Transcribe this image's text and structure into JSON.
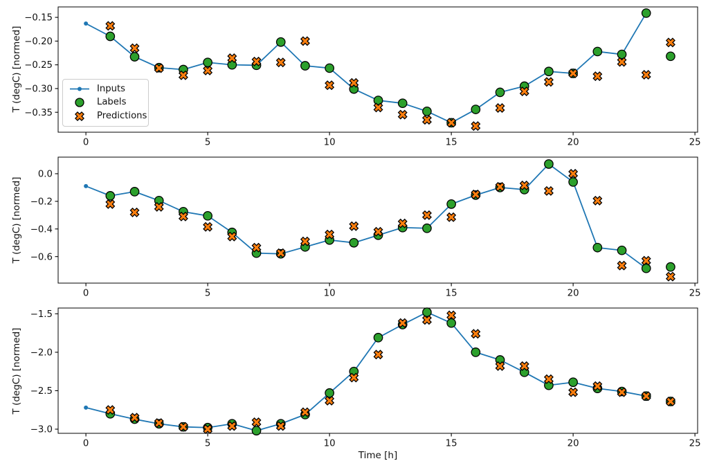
{
  "figure": {
    "xlabel": "Time [h]",
    "ylabel": "T (degC) [normed]",
    "background": "#ffffff",
    "xlim": [
      -1.14,
      25.11
    ],
    "xticks": [
      0,
      5,
      10,
      15,
      20,
      25
    ],
    "xtick_labels": [
      "0",
      "5",
      "10",
      "15",
      "20",
      "25"
    ],
    "legend": {
      "position": "lower left of first subplot",
      "items": [
        {
          "label": "Inputs",
          "marker": "line-dot",
          "color": "#1f77b4"
        },
        {
          "label": "Labels",
          "marker": "circle",
          "color": "#2ca02c"
        },
        {
          "label": "Predictions",
          "marker": "x",
          "color": "#ff7f0e"
        }
      ]
    },
    "colors": {
      "inputs": "#1f77b4",
      "labels": "#2ca02c",
      "predictions": "#ff7f0e",
      "marker_edge": "#000000",
      "spine": "#000000",
      "legend_border": "#cccccc",
      "text": "#111111"
    }
  },
  "chart_data": [
    {
      "name": "subplot-1",
      "type": "line",
      "ylabel": "T (degC) [normed]",
      "ylim": [
        -0.392,
        -0.128
      ],
      "yticks": [
        -0.15,
        -0.2,
        -0.25,
        -0.3,
        -0.35
      ],
      "ytick_labels": [
        "−0.15",
        "−0.20",
        "−0.25",
        "−0.30",
        "−0.35"
      ],
      "series": [
        {
          "name": "Inputs",
          "x": [
            0,
            1,
            2,
            3,
            4,
            5,
            6,
            7,
            8,
            9,
            10,
            11,
            12,
            13,
            14,
            15,
            16,
            17,
            18,
            19,
            20,
            21,
            22,
            23
          ],
          "values": [
            -0.163,
            -0.19,
            -0.233,
            -0.256,
            -0.26,
            -0.245,
            -0.25,
            -0.251,
            -0.202,
            -0.252,
            -0.257,
            -0.301,
            -0.325,
            -0.331,
            -0.348,
            -0.372,
            -0.344,
            -0.308,
            -0.295,
            -0.264,
            -0.268,
            -0.222,
            -0.228,
            -0.141
          ]
        },
        {
          "name": "Labels",
          "x": [
            1,
            2,
            3,
            4,
            5,
            6,
            7,
            8,
            9,
            10,
            11,
            12,
            13,
            14,
            15,
            16,
            17,
            18,
            19,
            20,
            21,
            22,
            23,
            24
          ],
          "values": [
            -0.19,
            -0.233,
            -0.256,
            -0.26,
            -0.245,
            -0.25,
            -0.251,
            -0.202,
            -0.252,
            -0.257,
            -0.301,
            -0.325,
            -0.331,
            -0.348,
            -0.372,
            -0.344,
            -0.308,
            -0.295,
            -0.264,
            -0.268,
            -0.222,
            -0.228,
            -0.141,
            -0.232
          ]
        },
        {
          "name": "Predictions",
          "x": [
            1,
            2,
            3,
            4,
            5,
            6,
            7,
            8,
            9,
            10,
            11,
            12,
            13,
            14,
            15,
            16,
            17,
            18,
            19,
            20,
            21,
            22,
            23,
            24
          ],
          "values": [
            -0.168,
            -0.215,
            -0.257,
            -0.272,
            -0.262,
            -0.236,
            -0.243,
            -0.245,
            -0.2,
            -0.293,
            -0.288,
            -0.34,
            -0.355,
            -0.366,
            -0.372,
            -0.379,
            -0.341,
            -0.306,
            -0.286,
            -0.268,
            -0.274,
            -0.244,
            -0.271,
            -0.203
          ]
        }
      ]
    },
    {
      "name": "subplot-2",
      "type": "line",
      "ylabel": "T (degC) [normed]",
      "ylim": [
        -0.792,
        0.12
      ],
      "yticks": [
        0.0,
        -0.2,
        -0.4,
        -0.6
      ],
      "ytick_labels": [
        "0.0",
        "−0.2",
        "−0.4",
        "−0.6"
      ],
      "series": [
        {
          "name": "Inputs",
          "x": [
            0,
            1,
            2,
            3,
            4,
            5,
            6,
            7,
            8,
            9,
            10,
            11,
            12,
            13,
            14,
            15,
            16,
            17,
            18,
            19,
            20,
            21,
            22,
            23
          ],
          "values": [
            -0.09,
            -0.16,
            -0.13,
            -0.195,
            -0.275,
            -0.305,
            -0.425,
            -0.575,
            -0.58,
            -0.53,
            -0.48,
            -0.5,
            -0.445,
            -0.39,
            -0.395,
            -0.22,
            -0.155,
            -0.1,
            -0.115,
            0.07,
            -0.06,
            -0.535,
            -0.555,
            -0.685
          ]
        },
        {
          "name": "Labels",
          "x": [
            1,
            2,
            3,
            4,
            5,
            6,
            7,
            8,
            9,
            10,
            11,
            12,
            13,
            14,
            15,
            16,
            17,
            18,
            19,
            20,
            21,
            22,
            23,
            24
          ],
          "values": [
            -0.16,
            -0.13,
            -0.195,
            -0.275,
            -0.305,
            -0.425,
            -0.575,
            -0.58,
            -0.53,
            -0.48,
            -0.5,
            -0.445,
            -0.39,
            -0.395,
            -0.22,
            -0.155,
            -0.1,
            -0.115,
            0.07,
            -0.06,
            -0.535,
            -0.555,
            -0.685,
            -0.675
          ]
        },
        {
          "name": "Predictions",
          "x": [
            1,
            2,
            3,
            4,
            5,
            6,
            7,
            8,
            9,
            10,
            11,
            12,
            13,
            14,
            15,
            16,
            17,
            18,
            19,
            20,
            21,
            22,
            23,
            24
          ],
          "values": [
            -0.22,
            -0.28,
            -0.24,
            -0.31,
            -0.385,
            -0.455,
            -0.535,
            -0.575,
            -0.49,
            -0.44,
            -0.38,
            -0.42,
            -0.36,
            -0.3,
            -0.315,
            -0.15,
            -0.095,
            -0.085,
            -0.125,
            0.0,
            -0.195,
            -0.665,
            -0.63,
            -0.745
          ]
        }
      ]
    },
    {
      "name": "subplot-3",
      "type": "line",
      "ylabel": "T (degC) [normed]",
      "xlabel": "Time [h]",
      "ylim": [
        -3.054,
        -1.425
      ],
      "yticks": [
        -1.5,
        -2.0,
        -2.5,
        -3.0
      ],
      "ytick_labels": [
        "−1.5",
        "−2.0",
        "−2.5",
        "−3.0"
      ],
      "series": [
        {
          "name": "Inputs",
          "x": [
            0,
            1,
            2,
            3,
            4,
            5,
            6,
            7,
            8,
            9,
            10,
            11,
            12,
            13,
            14,
            15,
            16,
            17,
            18,
            19,
            20,
            21,
            22,
            23
          ],
          "values": [
            -2.72,
            -2.8,
            -2.87,
            -2.93,
            -2.97,
            -2.98,
            -2.93,
            -3.02,
            -2.93,
            -2.81,
            -2.53,
            -2.25,
            -1.81,
            -1.64,
            -1.48,
            -1.62,
            -2.0,
            -2.1,
            -2.26,
            -2.43,
            -2.39,
            -2.47,
            -2.51,
            -2.57
          ]
        },
        {
          "name": "Labels",
          "x": [
            1,
            2,
            3,
            4,
            5,
            6,
            7,
            8,
            9,
            10,
            11,
            12,
            13,
            14,
            15,
            16,
            17,
            18,
            19,
            20,
            21,
            22,
            23,
            24
          ],
          "values": [
            -2.8,
            -2.87,
            -2.93,
            -2.97,
            -2.98,
            -2.93,
            -3.02,
            -2.93,
            -2.81,
            -2.53,
            -2.25,
            -1.81,
            -1.64,
            -1.48,
            -1.62,
            -2.0,
            -2.1,
            -2.26,
            -2.43,
            -2.39,
            -2.47,
            -2.51,
            -2.57,
            -2.64
          ]
        },
        {
          "name": "Predictions",
          "x": [
            1,
            2,
            3,
            4,
            5,
            6,
            7,
            8,
            9,
            10,
            11,
            12,
            13,
            14,
            15,
            16,
            17,
            18,
            19,
            20,
            21,
            22,
            23,
            24
          ],
          "values": [
            -2.75,
            -2.85,
            -2.92,
            -2.97,
            -3.0,
            -2.96,
            -2.91,
            -2.96,
            -2.78,
            -2.63,
            -2.33,
            -2.03,
            -1.62,
            -1.58,
            -1.52,
            -1.76,
            -2.18,
            -2.18,
            -2.35,
            -2.52,
            -2.44,
            -2.52,
            -2.57,
            -2.64
          ]
        }
      ]
    }
  ]
}
